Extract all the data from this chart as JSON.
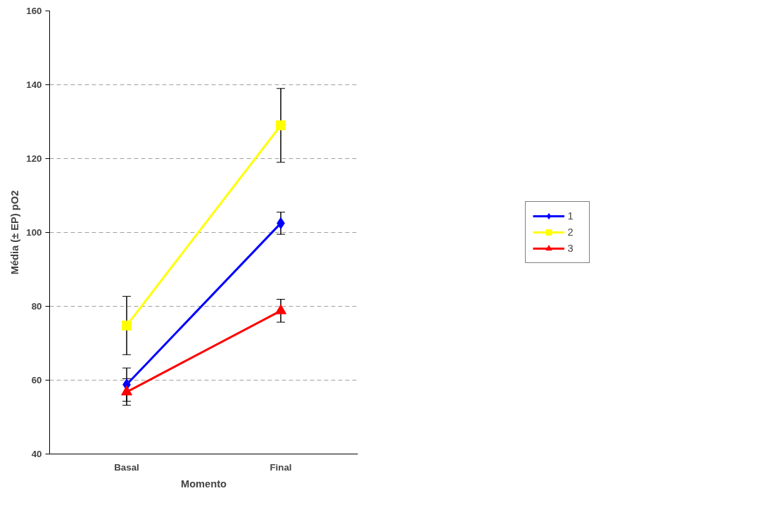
{
  "chart_data": {
    "type": "line",
    "xlabel": "Momento",
    "ylabel": "Média (± EP) pO2",
    "categories": [
      "Basal",
      "Final"
    ],
    "series": [
      {
        "name": "1",
        "color": "#0000ff",
        "marker": "diamond",
        "values": [
          58.8,
          102.5
        ],
        "errors": [
          4.5,
          3.0
        ]
      },
      {
        "name": "2",
        "color": "#ffff00",
        "marker": "square",
        "values": [
          74.8,
          129.0
        ],
        "errors": [
          7.9,
          10.0
        ]
      },
      {
        "name": "3",
        "color": "#ff0000",
        "marker": "triangle",
        "values": [
          56.8,
          78.8
        ],
        "errors": [
          3.6,
          3.1
        ]
      }
    ],
    "ylim": [
      40,
      160
    ],
    "yticks": [
      40,
      60,
      80,
      100,
      120,
      140,
      160
    ],
    "grid": "y",
    "legend": "right",
    "line_style": "solid"
  }
}
